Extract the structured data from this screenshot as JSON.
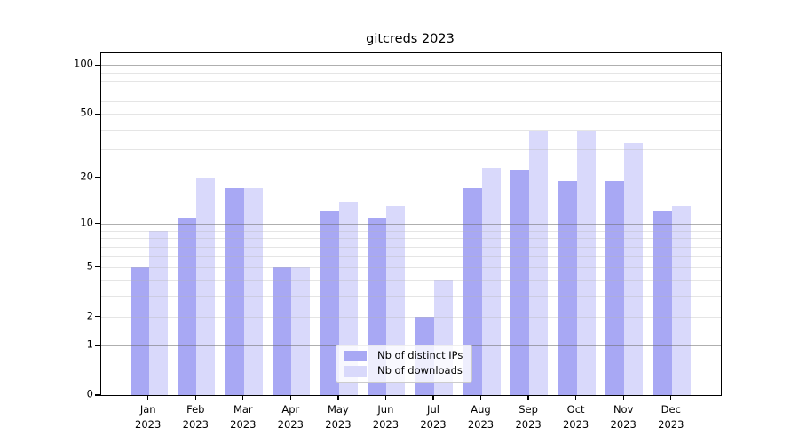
{
  "title": "gitcreds 2023",
  "chart_data": {
    "type": "bar",
    "title": "gitcreds 2023",
    "categories": [
      "Jan",
      "Feb",
      "Mar",
      "Apr",
      "May",
      "Jun",
      "Jul",
      "Aug",
      "Sep",
      "Oct",
      "Nov",
      "Dec"
    ],
    "x_year_label": "2023",
    "series": [
      {
        "name": "Nb of distinct IPs",
        "color": "#a8a8f4",
        "values": [
          5,
          11,
          17,
          5,
          12,
          11,
          2,
          17,
          22,
          19,
          19,
          12
        ]
      },
      {
        "name": "Nb of downloads",
        "color": "#d9d9fb",
        "values": [
          9,
          20,
          17,
          5,
          14,
          13,
          4,
          23,
          39,
          39,
          33,
          13
        ]
      }
    ],
    "yscale": "log1p",
    "ylim": [
      0,
      118
    ],
    "yticks": [
      0,
      1,
      2,
      5,
      10,
      20,
      50,
      100
    ],
    "ytick_labels": [
      "0",
      "1",
      "2",
      "5",
      "10",
      "20",
      "50",
      "100"
    ],
    "major_gridlines": [
      1,
      10,
      100
    ],
    "minor_gridlines": [
      2,
      3,
      4,
      5,
      6,
      7,
      8,
      9,
      20,
      30,
      40,
      50,
      60,
      70,
      80,
      90
    ],
    "grid": true,
    "legend_position": "lower-center-inside"
  },
  "colors": {
    "background": "#ffffff",
    "bar_ips": "#a8a8f4",
    "bar_downloads": "#d9d9fb",
    "major_grid": "#b3b3b3",
    "minor_grid": "#e7e7e7",
    "axis": "#000000"
  }
}
